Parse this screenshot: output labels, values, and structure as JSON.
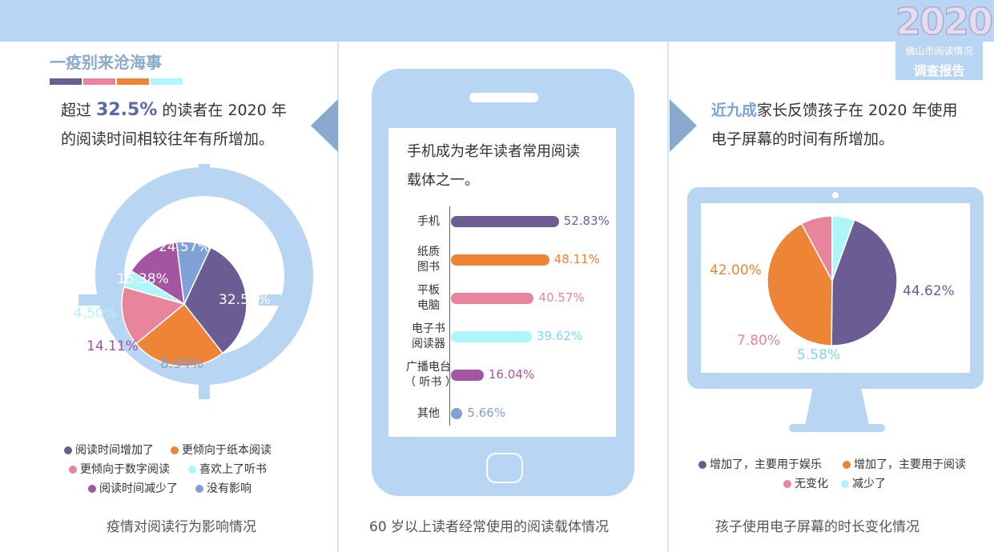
{
  "badge": {
    "year": "2020",
    "line1": "佛山市阅读情况",
    "line2": "调查报告"
  },
  "colors": {
    "purple": "#6b5d93",
    "orange": "#ee8435",
    "pink": "#e8859c",
    "cyan": "#aef6fa",
    "magenta": "#a455a2",
    "blue": "#7ea2d6",
    "frame": "#b8d6f4"
  },
  "left": {
    "title": "一疫别来沧海事",
    "desc_pre": "超过 ",
    "desc_highlight": "32.5%",
    "desc_post": " 的读者在 2020 年",
    "desc_line2": "的阅读时间相较往年有所增加。",
    "caption": "疫情对阅读行为影响情况"
  },
  "middle": {
    "desc_line1": "手机成为老年读者常用阅读",
    "desc_line2": "载体之一。",
    "caption": "60 岁以上读者经常使用的阅读载体情况"
  },
  "right": {
    "desc_highlight": "近九成",
    "desc_post": "家长反馈孩子在 2020 年使用",
    "desc_line2": "电子屏幕的时间有所增加。",
    "caption": "孩子使用电子屏幕的时长变化情况"
  },
  "chart_data": [
    {
      "type": "pie",
      "categories": [
        "阅读时间增加了",
        "更倾向于纸本阅读",
        "更倾向于数字阅读",
        "喜欢上了听书",
        "阅读时间减少了",
        "没有影响"
      ],
      "values": [
        32.51,
        24.57,
        15.38,
        4.5,
        14.11,
        8.94
      ],
      "labels": [
        "32.51%",
        "24.57%",
        "15.38%",
        "4.50%",
        "14.11%",
        "8.94%"
      ],
      "colors": [
        "#6b5d93",
        "#ee8435",
        "#e8859c",
        "#aef6fa",
        "#a455a2",
        "#7ea2d6"
      ]
    },
    {
      "type": "bar",
      "orientation": "horizontal",
      "categories": [
        "手机",
        "纸质图书",
        "平板电脑",
        "电子书阅读器",
        "广播电台（听书）",
        "其他"
      ],
      "display_lines": [
        [
          "手机"
        ],
        [
          "纸质",
          "图书"
        ],
        [
          "平板",
          "电脑"
        ],
        [
          "电子书",
          "阅读器"
        ],
        [
          "广播电台",
          "（ 听书 ）"
        ],
        [
          "其他"
        ]
      ],
      "values": [
        52.83,
        48.11,
        40.57,
        39.62,
        16.04,
        5.66
      ],
      "labels": [
        "52.83%",
        "48.11%",
        "40.57%",
        "39.62%",
        "16.04%",
        "5.66%"
      ],
      "colors": [
        "#6b5d93",
        "#ee8435",
        "#e8859c",
        "#aef6fa",
        "#a455a2",
        "#7ea2d6"
      ]
    },
    {
      "type": "pie",
      "categories": [
        "增加了，主要用于娱乐",
        "增加了，主要用于阅读",
        "无变化",
        "减少了"
      ],
      "values": [
        44.62,
        42.0,
        7.8,
        5.58
      ],
      "labels": [
        "44.62%",
        "42.00%",
        "7.80%",
        "5.58%"
      ],
      "colors": [
        "#6b5d93",
        "#ee8435",
        "#e8859c",
        "#aef6fa"
      ]
    }
  ]
}
